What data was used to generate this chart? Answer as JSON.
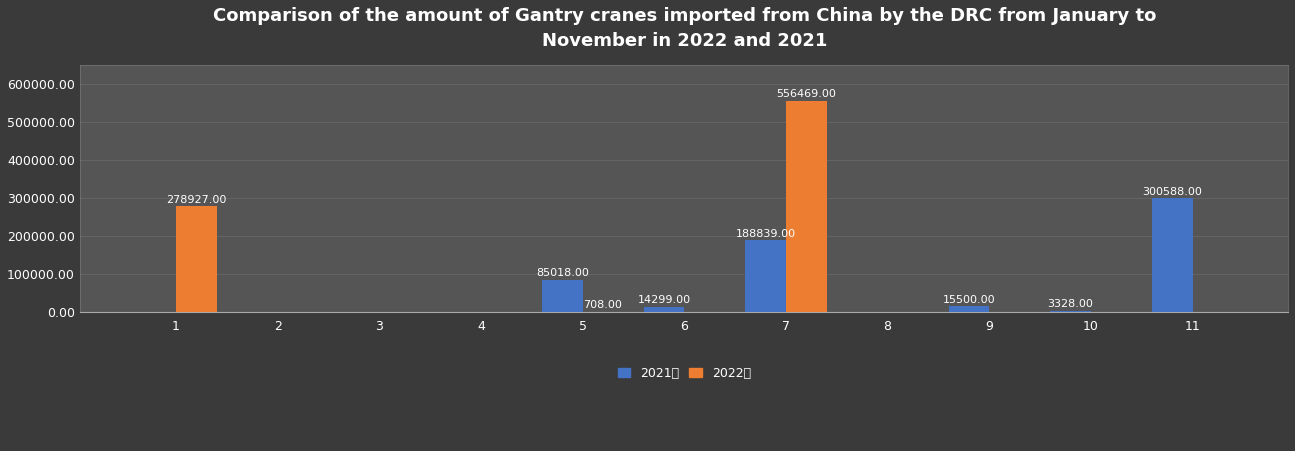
{
  "title": "Comparison of the amount of Gantry cranes imported from China by the DRC from January to\nNovember in 2022 and 2021",
  "months": [
    1,
    2,
    3,
    4,
    5,
    6,
    7,
    8,
    9,
    10,
    11
  ],
  "values_2021": [
    0,
    0,
    0,
    0,
    85018.0,
    14299.0,
    188839.0,
    0,
    15500.0,
    3328.0,
    300588.0
  ],
  "values_2022": [
    278927.0,
    0,
    0,
    0,
    708.0,
    0,
    556469.0,
    0,
    0,
    0,
    0
  ],
  "color_2021": "#4472C4",
  "color_2022": "#ED7D31",
  "bg_color": "#3a3a3a",
  "plot_bg_color": "#555555",
  "grid_color": "#6a6a6a",
  "text_color": "white",
  "label_2021": "2021年",
  "label_2022": "2022年",
  "ylim": [
    0,
    650000
  ],
  "yticks": [
    0,
    100000,
    200000,
    300000,
    400000,
    500000,
    600000
  ],
  "ytick_labels": [
    "0.00",
    "100000.00",
    "200000.00",
    "300000.00",
    "400000.00",
    "500000.00",
    "600000.00"
  ],
  "bar_width": 0.4,
  "title_fontsize": 13,
  "tick_fontsize": 9,
  "label_fontsize": 8
}
